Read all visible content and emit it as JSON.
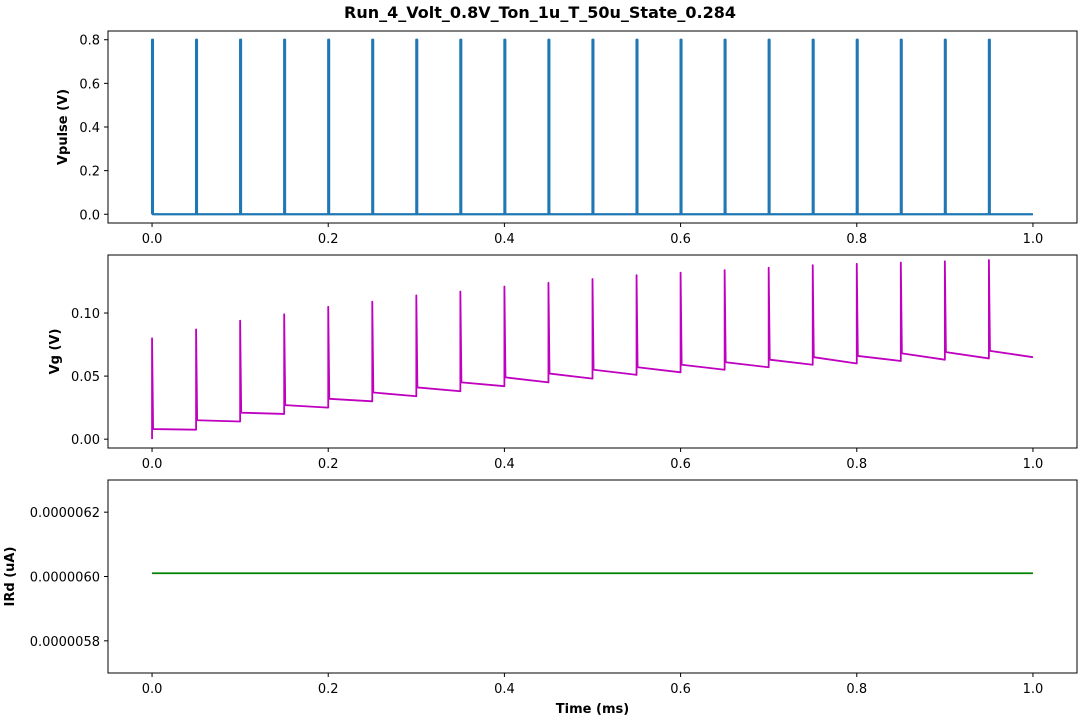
{
  "title": "Run_4_Volt_0.8V_Ton_1u_T_50u_State_0.284",
  "chart_data": [
    {
      "type": "line",
      "ylabel": "Vpulse (V)",
      "xlim": [
        -0.05,
        1.05
      ],
      "ylim": [
        -0.04,
        0.84
      ],
      "xticks": [
        0.0,
        0.2,
        0.4,
        0.6,
        0.8,
        1.0
      ],
      "xtick_labels": [
        "0.0",
        "0.2",
        "0.4",
        "0.6",
        "0.8",
        "1.0"
      ],
      "yticks": [
        0.0,
        0.2,
        0.4,
        0.6,
        0.8
      ],
      "ytick_labels": [
        "0.0",
        "0.2",
        "0.4",
        "0.6",
        "0.8"
      ],
      "color": "#1f77b4",
      "series": [
        {
          "pulse_period_ms": 0.05,
          "pulse_width_ms": 0.001,
          "pulse_count": 20,
          "pulse_amplitude": 0.8,
          "baseline": 0.0,
          "x_end": 1.0
        }
      ]
    },
    {
      "type": "line",
      "ylabel": "Vg (V)",
      "xlim": [
        -0.05,
        1.05
      ],
      "ylim": [
        -0.007,
        0.146
      ],
      "xticks": [
        0.0,
        0.2,
        0.4,
        0.6,
        0.8,
        1.0
      ],
      "xtick_labels": [
        "0.0",
        "0.2",
        "0.4",
        "0.6",
        "0.8",
        "1.0"
      ],
      "yticks": [
        0.0,
        0.05,
        0.1
      ],
      "ytick_labels": [
        "0.00",
        "0.05",
        "0.10"
      ],
      "color": "#bf00bf",
      "series": [
        {
          "pulse_starts": [
            0.0,
            0.05,
            0.1,
            0.15,
            0.2,
            0.25,
            0.3,
            0.35,
            0.4,
            0.45,
            0.5,
            0.55,
            0.6,
            0.65,
            0.7,
            0.75,
            0.8,
            0.85,
            0.9,
            0.95
          ],
          "peaks": [
            0.08,
            0.087,
            0.094,
            0.099,
            0.105,
            0.109,
            0.114,
            0.117,
            0.121,
            0.124,
            0.127,
            0.13,
            0.132,
            0.134,
            0.136,
            0.138,
            0.139,
            0.14,
            0.141,
            0.142
          ],
          "drop_levels": [
            0.008,
            0.015,
            0.021,
            0.027,
            0.032,
            0.037,
            0.041,
            0.045,
            0.049,
            0.052,
            0.055,
            0.057,
            0.059,
            0.061,
            0.063,
            0.065,
            0.066,
            0.068,
            0.069,
            0.07
          ],
          "end_levels": [
            0.0075,
            0.014,
            0.02,
            0.025,
            0.03,
            0.034,
            0.038,
            0.042,
            0.045,
            0.048,
            0.051,
            0.053,
            0.055,
            0.057,
            0.059,
            0.06,
            0.062,
            0.063,
            0.064,
            0.065
          ],
          "start_value": 0.0,
          "x_end": 1.0
        }
      ]
    },
    {
      "type": "line",
      "ylabel": "IRd (uA)",
      "xlabel": "Time (ms)",
      "xlim": [
        -0.05,
        1.05
      ],
      "ylim": [
        5.7e-07,
        6.3e-07
      ],
      "xticks": [
        0.0,
        0.2,
        0.4,
        0.6,
        0.8,
        1.0
      ],
      "xtick_labels": [
        "0.0",
        "0.2",
        "0.4",
        "0.6",
        "0.8",
        "1.0"
      ],
      "yticks": [
        5.8e-07,
        6e-07,
        6.2e-07
      ],
      "ytick_labels": [
        "0.0000058",
        "0.0000060",
        "0.0000062"
      ],
      "color": "#008000",
      "series": [
        {
          "x": [
            0.0,
            1.0
          ],
          "y": [
            6.01e-07,
            6.01e-07
          ]
        }
      ]
    }
  ]
}
